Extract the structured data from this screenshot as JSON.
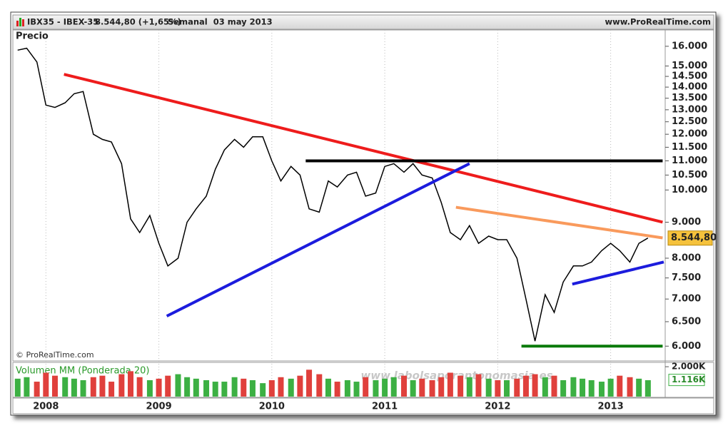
{
  "chart_data": {
    "type": "line",
    "header": {
      "symbol": "IBX35 - IBEX-35",
      "quote": "8.544,80 (+1,65%)",
      "period": "Semanal  03 may 2013",
      "site": "www.ProRealTime.com"
    },
    "copyright": "© ProRealTime.com",
    "watermark": "www.labolsaporantonomasia.es",
    "log_y": true,
    "xgrid": true,
    "x": [
      2007.75,
      2007.83,
      2007.92,
      2008.0,
      2008.08,
      2008.17,
      2008.25,
      2008.33,
      2008.42,
      2008.5,
      2008.58,
      2008.67,
      2008.75,
      2008.83,
      2008.92,
      2009.0,
      2009.08,
      2009.17,
      2009.25,
      2009.33,
      2009.42,
      2009.5,
      2009.58,
      2009.67,
      2009.75,
      2009.83,
      2009.92,
      2010.0,
      2010.08,
      2010.17,
      2010.25,
      2010.33,
      2010.42,
      2010.5,
      2010.58,
      2010.67,
      2010.75,
      2010.83,
      2010.92,
      2011.0,
      2011.08,
      2011.17,
      2011.25,
      2011.33,
      2011.42,
      2011.5,
      2011.58,
      2011.67,
      2011.75,
      2011.83,
      2011.92,
      2012.0,
      2012.08,
      2012.17,
      2012.25,
      2012.33,
      2012.42,
      2012.5,
      2012.58,
      2012.67,
      2012.75,
      2012.83,
      2012.92,
      2013.0,
      2013.08,
      2013.17,
      2013.25,
      2013.33
    ],
    "series": [
      {
        "name": "Precio",
        "color": "#000000",
        "values": [
          15800,
          15900,
          15200,
          13200,
          13100,
          13300,
          13700,
          13800,
          12000,
          11800,
          11700,
          10900,
          9100,
          8700,
          9200,
          8400,
          7800,
          8000,
          9000,
          9400,
          9800,
          10700,
          11400,
          11800,
          11500,
          11900,
          11900,
          11000,
          10300,
          10800,
          10500,
          9400,
          9300,
          10300,
          10100,
          10500,
          10600,
          9800,
          9900,
          10800,
          10900,
          10600,
          10900,
          10500,
          10400,
          9600,
          8700,
          8500,
          8900,
          8400,
          8600,
          8500,
          8500,
          8000,
          7000,
          6100,
          7100,
          6700,
          7400,
          7800,
          7800,
          7900,
          8200,
          8400,
          8200,
          7900,
          8400,
          8544.8
        ]
      }
    ],
    "last": {
      "value": 8544.8,
      "label": "8.544,80"
    },
    "xlim": [
      2007.72,
      2013.47
    ],
    "xticks": [
      2008,
      2009,
      2010,
      2011,
      2012,
      2013
    ],
    "ylim": [
      5730,
      16760
    ],
    "yticks": [
      {
        "value": 6000,
        "label": "6.000"
      },
      {
        "value": 6500,
        "label": "6.500"
      },
      {
        "value": 7000,
        "label": "7.000"
      },
      {
        "value": 7500,
        "label": "7.500"
      },
      {
        "value": 8000,
        "label": "8.000"
      },
      {
        "value": 9000,
        "label": "9.000"
      },
      {
        "value": 10000,
        "label": "10.000"
      },
      {
        "value": 10500,
        "label": "10.500"
      },
      {
        "value": 11000,
        "label": "11.000"
      },
      {
        "value": 11500,
        "label": "11.500"
      },
      {
        "value": 12000,
        "label": "12.000"
      },
      {
        "value": 12500,
        "label": "12.500"
      },
      {
        "value": 13000,
        "label": "13.000"
      },
      {
        "value": 13500,
        "label": "13.500"
      },
      {
        "value": 14000,
        "label": "14.000"
      },
      {
        "value": 14500,
        "label": "14.500"
      },
      {
        "value": 15000,
        "label": "15.000"
      },
      {
        "value": 16000,
        "label": "16.000"
      }
    ],
    "trendlines": [
      {
        "color": "#ee1c1c",
        "x": [
          2008.16,
          2013.46
        ],
        "y": [
          14600,
          9000
        ]
      },
      {
        "color": "#1c1cdd",
        "x": [
          2009.07,
          2011.75
        ],
        "y": [
          6620,
          10900
        ]
      },
      {
        "color": "#000000",
        "x": [
          2010.3,
          2013.46
        ],
        "y": [
          11000,
          11000
        ]
      },
      {
        "color": "#f99a5c",
        "x": [
          2011.63,
          2013.46
        ],
        "y": [
          9450,
          8550
        ]
      },
      {
        "color": "#1c1cdd",
        "x": [
          2012.66,
          2013.47
        ],
        "y": [
          7350,
          7900
        ]
      },
      {
        "color": "#0a7a0a",
        "x": [
          2012.21,
          2013.46
        ],
        "y": [
          6000,
          6000
        ]
      }
    ],
    "volume": {
      "name": "Volumen MM (Ponderada 20)",
      "up_color": "#3cb043",
      "down_color": "#e0403c",
      "values": [
        1200,
        1300,
        1000,
        1600,
        1400,
        1300,
        1200,
        1100,
        1300,
        1400,
        1000,
        1500,
        1700,
        1300,
        1100,
        1200,
        1400,
        1500,
        1300,
        1200,
        1100,
        1000,
        1000,
        1300,
        1200,
        1100,
        900,
        1100,
        1300,
        1200,
        1400,
        1800,
        1500,
        1200,
        1000,
        1100,
        1000,
        1300,
        1100,
        1200,
        1300,
        1400,
        1100,
        1200,
        1100,
        1300,
        1600,
        1400,
        1300,
        1500,
        1200,
        1100,
        1100,
        1200,
        1400,
        1500,
        1300,
        1400,
        1100,
        1300,
        1200,
        1100,
        1000,
        1200,
        1400,
        1300,
        1200,
        1100
      ],
      "ylim": [
        0,
        2100
      ],
      "yticks": [
        {
          "value": 2000,
          "label": "2.000K"
        }
      ],
      "last": {
        "value": 1116,
        "label": "1.116K"
      }
    }
  }
}
